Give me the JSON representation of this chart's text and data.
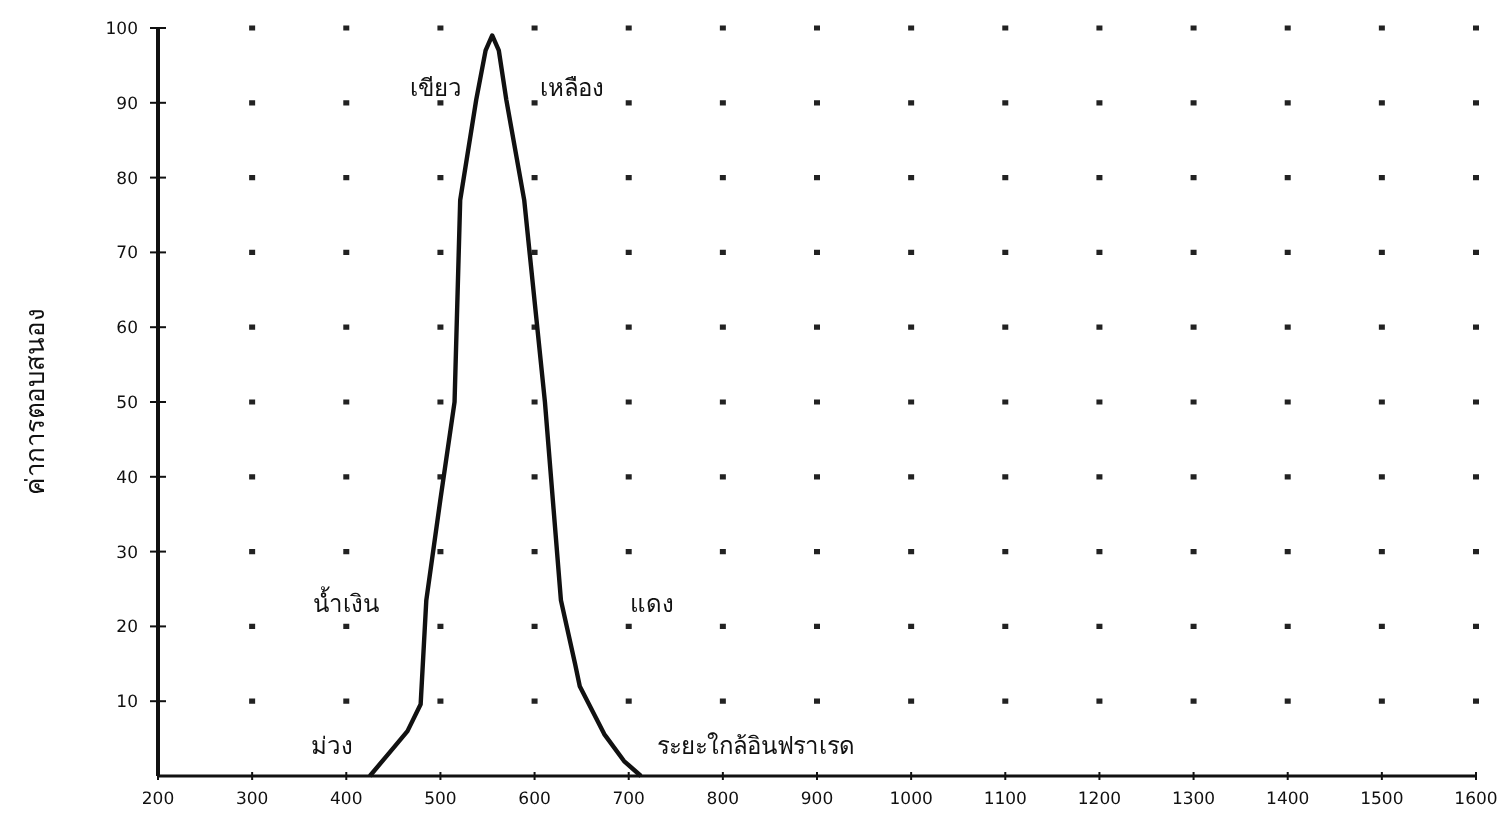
{
  "chart_data": {
    "type": "line",
    "ylabel": "ค่าการตอบสนอง",
    "x": [
      425,
      445,
      465,
      479,
      485,
      500,
      515,
      521,
      538,
      548,
      555,
      562,
      570,
      589,
      611,
      628,
      643,
      648,
      674,
      695,
      713
    ],
    "values": [
      0,
      3,
      6,
      9.6,
      23.5,
      37,
      50,
      77,
      90.4,
      97,
      99,
      97,
      90.4,
      77,
      50,
      23.5,
      15,
      12,
      5.6,
      2,
      0
    ],
    "color": "#111111",
    "xlim": [
      200,
      1600
    ],
    "xticks": [
      200,
      300,
      400,
      500,
      600,
      700,
      800,
      900,
      1000,
      1100,
      1200,
      1300,
      1400,
      1500,
      1600
    ],
    "ylim": [
      0,
      100
    ],
    "yticks": [
      10,
      20,
      30,
      40,
      50,
      60,
      70,
      80,
      90,
      100
    ],
    "grid": true,
    "marker": "none",
    "line_style": "solid",
    "annotations": [
      "เขียว",
      "เหลือง",
      "น้ำเงิน",
      "แดง",
      "ม่วง",
      "ระยะใกล้อินฟราเรด"
    ]
  }
}
